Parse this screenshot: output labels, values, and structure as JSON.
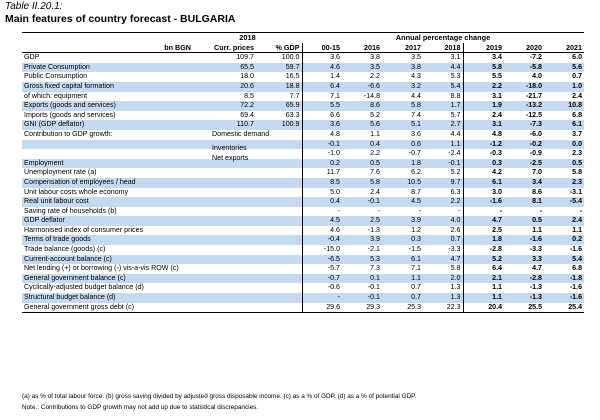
{
  "table_label": "Table II.20.1:",
  "title": "Main features of country forecast - BULGARIA",
  "header": {
    "group_2018": "2018",
    "group_change": "Annual percentage change",
    "col_bn": "bn BGN",
    "col_curr": "Curr. prices",
    "col_gdp": "% GDP",
    "years": [
      "00-15",
      "2016",
      "2017",
      "2018",
      "2019",
      "2020",
      "2021"
    ]
  },
  "rows": [
    {
      "label": "GDP",
      "curr": "109.7",
      "pgdp": "100.0",
      "v": [
        "3.6",
        "3.8",
        "3.5",
        "3.1",
        "3.4",
        "-7.2",
        "6.0"
      ],
      "hl": false
    },
    {
      "label": "Private Consumption",
      "curr": "65.5",
      "pgdp": "59.7",
      "v": [
        "4.6",
        "3.5",
        "3.8",
        "4.4",
        "5.8",
        "-5.8",
        "5.6"
      ],
      "hl": true
    },
    {
      "label": "Public Consumption",
      "curr": "18.0",
      "pgdp": "16.5",
      "v": [
        "1.4",
        "2.2",
        "4.3",
        "5.3",
        "5.5",
        "4.0",
        "0.7"
      ],
      "hl": false
    },
    {
      "label": "Gross fixed capital formation",
      "curr": "20.6",
      "pgdp": "18.8",
      "v": [
        "6.4",
        "-6.6",
        "3.2",
        "5.4",
        "2.2",
        "-18.0",
        "1.0"
      ],
      "hl": true
    },
    {
      "label": "of which: equipment",
      "curr": "8.5",
      "pgdp": "7.7",
      "v": [
        "7.1",
        "-14.8",
        "4.4",
        "8.8",
        "3.1",
        "-21.7",
        "2.4"
      ],
      "hl": false
    },
    {
      "label": "Exports (goods and services)",
      "curr": "72.2",
      "pgdp": "65.9",
      "v": [
        "5.5",
        "8.6",
        "5.8",
        "1.7",
        "1.9",
        "-13.2",
        "10.8"
      ],
      "hl": true
    },
    {
      "label": "Imports (goods and services)",
      "curr": "69.4",
      "pgdp": "63.3",
      "v": [
        "6.6",
        "5.2",
        "7.4",
        "5.7",
        "2.4",
        "-12.5",
        "6.8"
      ],
      "hl": false
    },
    {
      "label": "GNI (GDP deflator)",
      "curr": "110.7",
      "pgdp": "100.9",
      "v": [
        "3.6",
        "5.6",
        "5.1",
        "2.7",
        "3.1",
        "-7.3",
        "6.1"
      ],
      "hl": true
    },
    {
      "label": "Contribution to GDP growth:",
      "sub": "Domestic demand",
      "curr": "",
      "pgdp": "",
      "v": [
        "4.8",
        "1.1",
        "3.6",
        "4.4",
        "4.8",
        "-6.0",
        "3.7"
      ],
      "hl": false
    },
    {
      "label": "",
      "sub": "Inventories",
      "curr": "",
      "pgdp": "",
      "v": [
        "-0.1",
        "0.4",
        "0.6",
        "1.1",
        "-1.2",
        "-0.2",
        "0.0"
      ],
      "hl": true
    },
    {
      "label": "",
      "sub": "Net exports",
      "curr": "",
      "pgdp": "",
      "v": [
        "-1.0",
        "2.2",
        "-0.7",
        "-2.4",
        "-0.3",
        "-0.9",
        "2.3"
      ],
      "hl": false
    },
    {
      "label": "Employment",
      "curr": "",
      "pgdp": "",
      "v": [
        "0.2",
        "0.5",
        "1.8",
        "-0.1",
        "0.3",
        "-2.5",
        "0.5"
      ],
      "hl": true
    },
    {
      "label": "Unemployment rate (a)",
      "curr": "",
      "pgdp": "",
      "v": [
        "11.7",
        "7.6",
        "6.2",
        "5.2",
        "4.2",
        "7.0",
        "5.8"
      ],
      "hl": false
    },
    {
      "label": "Compensation of employees / head",
      "curr": "",
      "pgdp": "",
      "v": [
        "8.5",
        "5.8",
        "10.5",
        "9.7",
        "6.1",
        "3.4",
        "2.3"
      ],
      "hl": true
    },
    {
      "label": "Unit labour costs whole economy",
      "curr": "",
      "pgdp": "",
      "v": [
        "5.0",
        "2.4",
        "8.7",
        "6.3",
        "3.0",
        "8.6",
        "-3.1"
      ],
      "hl": false
    },
    {
      "label": "Real unit labour cost",
      "curr": "",
      "pgdp": "",
      "v": [
        "0.4",
        "-0.1",
        "4.5",
        "2.2",
        "-1.6",
        "8.1",
        "-5.4"
      ],
      "hl": true
    },
    {
      "label": "Saving rate of households (b)",
      "curr": "",
      "pgdp": "",
      "v": [
        "-",
        "-",
        "-",
        "-",
        "-",
        "-",
        "-"
      ],
      "hl": false
    },
    {
      "label": "GDP deflator",
      "curr": "",
      "pgdp": "",
      "v": [
        "4.5",
        "2.5",
        "3.9",
        "4.0",
        "4.7",
        "0.5",
        "2.4"
      ],
      "hl": true
    },
    {
      "label": "Harmonised index of consumer prices",
      "curr": "",
      "pgdp": "",
      "v": [
        "4.6",
        "-1.3",
        "1.2",
        "2.6",
        "2.5",
        "1.1",
        "1.1"
      ],
      "hl": false
    },
    {
      "label": "Terms of trade goods",
      "curr": "",
      "pgdp": "",
      "v": [
        "-0.4",
        "3.9",
        "0.3",
        "0.7",
        "1.8",
        "-1.6",
        "0.2"
      ],
      "hl": true
    },
    {
      "label": "Trade balance (goods) (c)",
      "curr": "",
      "pgdp": "",
      "v": [
        "-15.0",
        "-2.1",
        "-1.5",
        "-3.3",
        "-2.8",
        "-3.3",
        "-1.6"
      ],
      "hl": false
    },
    {
      "label": "Current-account balance (c)",
      "curr": "",
      "pgdp": "",
      "v": [
        "-6.5",
        "5.3",
        "6.1",
        "4.7",
        "5.2",
        "3.3",
        "5.4"
      ],
      "hl": true
    },
    {
      "label": "Net lending (+) or borrowing (-) vis-a-vis ROW (c)",
      "curr": "",
      "pgdp": "",
      "v": [
        "-5.7",
        "7.3",
        "7.1",
        "5.8",
        "6.4",
        "4.7",
        "6.8"
      ],
      "hl": false
    },
    {
      "label": "General government balance (c)",
      "curr": "",
      "pgdp": "",
      "v": [
        "-0.7",
        "0.1",
        "1.1",
        "2.0",
        "2.1",
        "-2.8",
        "-1.8"
      ],
      "hl": true
    },
    {
      "label": "Cyclically-adjusted budget balance (d)",
      "curr": "",
      "pgdp": "",
      "v": [
        "-0.6",
        "-0.1",
        "0.7",
        "1.3",
        "1.1",
        "-1.3",
        "-1.6"
      ],
      "hl": false
    },
    {
      "label": "Structural budget balance (d)",
      "curr": "",
      "pgdp": "",
      "v": [
        "-",
        "-0.1",
        "0.7",
        "1.3",
        "1.1",
        "-1.3",
        "-1.6"
      ],
      "hl": true
    },
    {
      "label": "General government gross debt (c)",
      "curr": "",
      "pgdp": "",
      "v": [
        "29.6",
        "29.3",
        "25.3",
        "22.3",
        "20.4",
        "25.5",
        "25.4"
      ],
      "hl": false
    }
  ],
  "footnotes": [
    "(a) as % of total labour force. (b) gross saving divided by adjusted gross disposable income. (c) as a % of GDP. (d) as a % of potential GDP.",
    "Note.: Contributions to GDP growth may not add up due to statistical discrepancies."
  ]
}
